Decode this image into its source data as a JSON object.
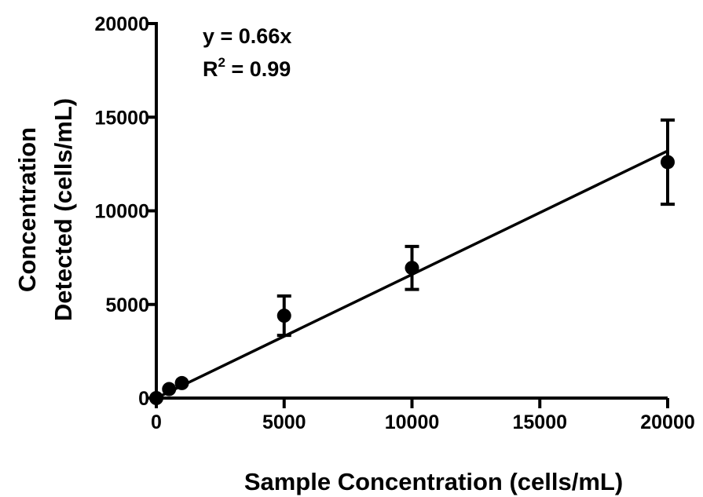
{
  "chart_data": {
    "type": "scatter",
    "xlabel": "Sample Concentration (cells/mL)",
    "ylabel_lines": [
      "Concentration",
      "Detected (cells/mL)"
    ],
    "xlim": [
      0,
      20000
    ],
    "ylim": [
      0,
      20000
    ],
    "x_ticks": [
      0,
      5000,
      10000,
      15000,
      20000
    ],
    "y_ticks": [
      0,
      5000,
      10000,
      15000,
      20000
    ],
    "x_tick_labels": [
      "0",
      "5000",
      "10000",
      "15000",
      "20000"
    ],
    "y_tick_labels": [
      "0",
      "5000",
      "10000",
      "15000",
      "20000"
    ],
    "grid": false,
    "points": [
      {
        "x": 0,
        "y": 0,
        "err": 0
      },
      {
        "x": 500,
        "y": 480,
        "err": 0
      },
      {
        "x": 1000,
        "y": 800,
        "err": 0
      },
      {
        "x": 5000,
        "y": 4400,
        "err": 1050
      },
      {
        "x": 10000,
        "y": 6950,
        "err": 1150
      },
      {
        "x": 20000,
        "y": 12600,
        "err": 2250
      }
    ],
    "fit": {
      "slope": 0.66,
      "x_range": [
        0,
        20000
      ]
    },
    "annotations": {
      "equation": "y = 0.66x",
      "r2_prefix": "R",
      "r2_sup": "2",
      "r2_suffix": " = 0.99"
    }
  }
}
